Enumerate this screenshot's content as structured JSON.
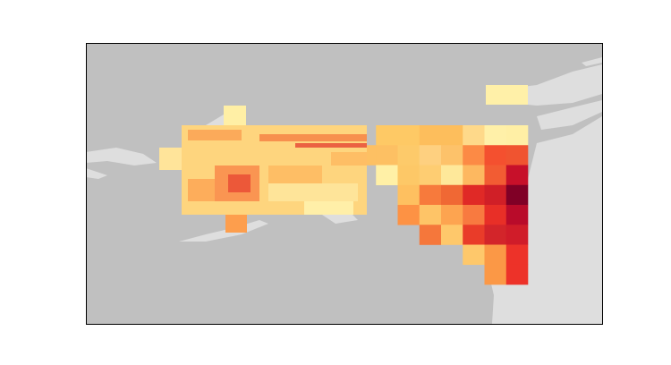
{
  "map": {
    "cells": [
      [
        null,
        "#fec965",
        "#fec965",
        "#fdbe5c",
        "#fdbe5c",
        "#fed98a",
        "#fff0a8",
        "#ffefa5"
      ],
      [
        "#fdc063",
        "#fdc063",
        "#fdca6a",
        "#fed080",
        "#fdc26a",
        "#fc8a45",
        "#f4502f",
        "#f05430"
      ],
      [
        null,
        "#fff0a6",
        "#fdc867",
        "#fecd72",
        "#fee89a",
        "#fdb860",
        "#f25c33",
        "#c7102a"
      ],
      [
        null,
        null,
        "#fec060",
        "#f77a3c",
        "#f06834",
        "#e02926",
        "#d01f27",
        "#800026"
      ],
      [
        null,
        null,
        "#fd9244",
        "#fec467",
        "#fda450",
        "#f87a40",
        "#e82f27",
        "#b90b2a"
      ],
      [
        null,
        null,
        null,
        "#f5773b",
        "#fec86b",
        "#e93c29",
        "#d3252a",
        "#d01c29"
      ],
      [
        null,
        null,
        null,
        null,
        null,
        "#fec86b",
        "#fb9846",
        "#ed3229"
      ],
      [
        null,
        null,
        null,
        null,
        null,
        null,
        "#fb9846",
        "#ed3229"
      ]
    ]
  }
}
